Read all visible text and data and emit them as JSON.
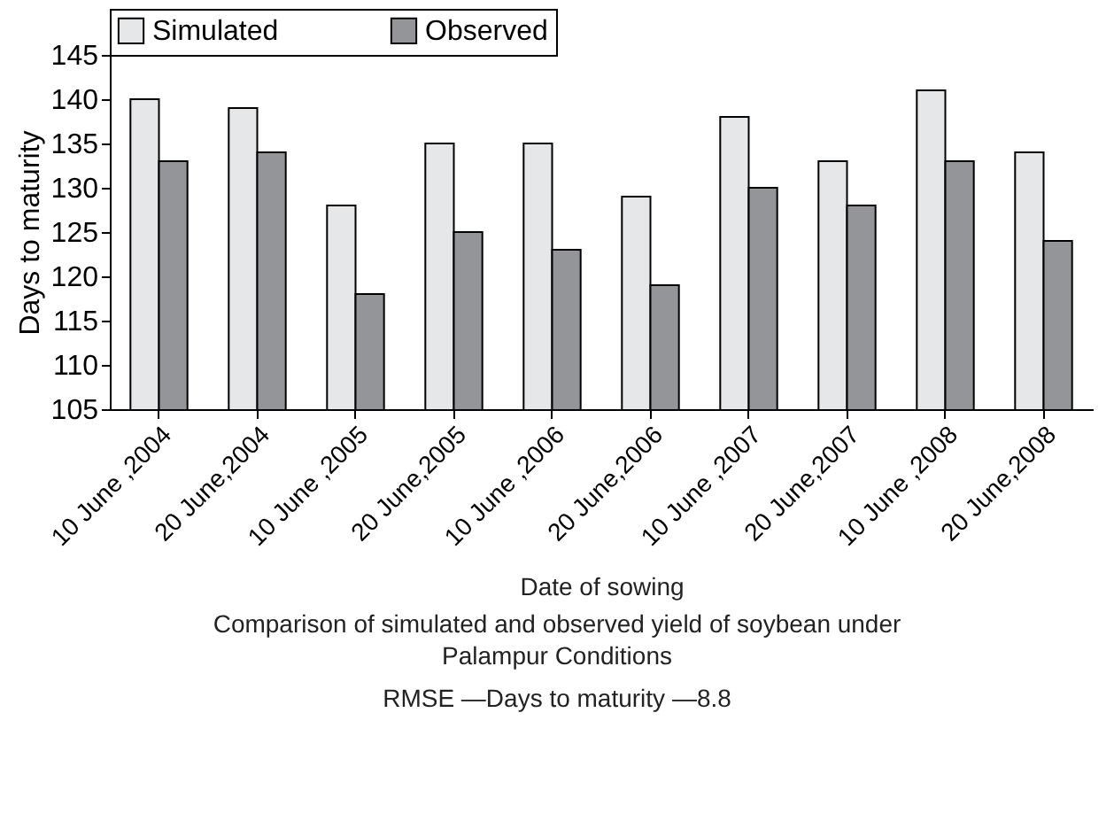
{
  "chart_data": {
    "type": "bar",
    "xlabel": "Date of sowing",
    "ylabel": "Days to maturity",
    "categories": [
      "10 June ,2004",
      "20 June,2004",
      "10 June ,2005",
      "20 June,2005",
      "10 June ,2006",
      "20 June,2006",
      "10 June ,2007",
      "20 June,2007",
      "10 June ,2008",
      "20 June,2008"
    ],
    "series": [
      {
        "name": "Simulated",
        "color": "#e6e7e8",
        "values": [
          140,
          139,
          128,
          135,
          135,
          129,
          138,
          133,
          141,
          134
        ]
      },
      {
        "name": "Observed",
        "color": "#939598",
        "values": [
          133,
          134,
          118,
          125,
          123,
          119,
          130,
          128,
          133,
          124
        ]
      }
    ],
    "ylim": [
      105,
      145
    ],
    "yticks": [
      105,
      110,
      115,
      120,
      125,
      130,
      135,
      140,
      145
    ],
    "grid": false,
    "legend": "top",
    "annotations": [
      "Comparison of simulated and observed yield of soybean under Palampur Conditions",
      "RMSE —Days to maturity —8.8"
    ]
  }
}
